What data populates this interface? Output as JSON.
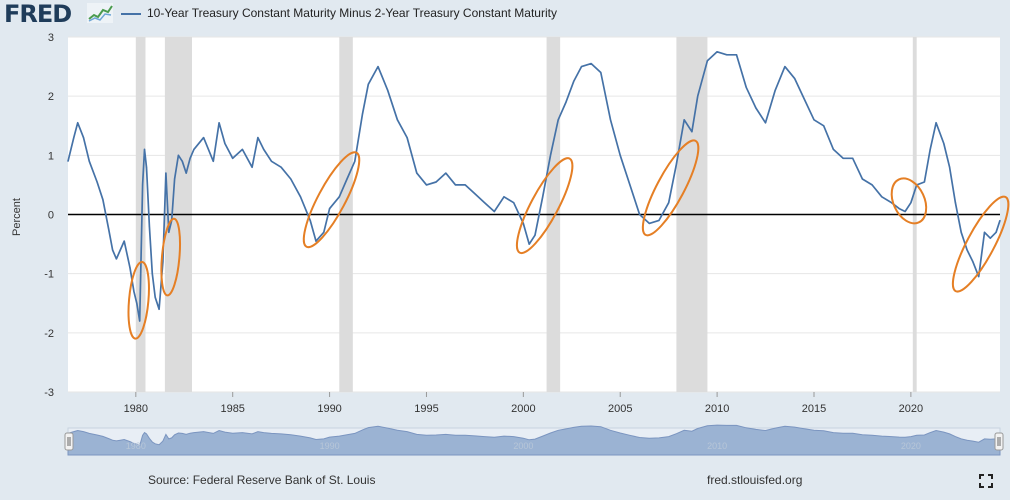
{
  "header": {
    "logo": "FRED",
    "series_title": "10-Year Treasury Constant Maturity Minus 2-Year Treasury Constant Maturity"
  },
  "colors": {
    "series": "#4572a7",
    "recession": "#dcdcdc",
    "annotation": "#e57f25",
    "zero_line": "#000000",
    "background": "#e1e9f0",
    "navigator_fill": "#9bb3d3",
    "navigator_line": "#7b95c0"
  },
  "icons": [
    "fred-logo-icon",
    "fullscreen-icon",
    "navigator-handle-icon"
  ],
  "chart_data": {
    "type": "line",
    "ylabel": "Percent",
    "ylim": [
      -3,
      3
    ],
    "xlim": [
      1976.5,
      2024.6
    ],
    "yticks": [
      3,
      2,
      1,
      0,
      -1,
      -2,
      -3
    ],
    "xticks": [
      1980,
      1985,
      1990,
      1995,
      2000,
      2005,
      2010,
      2015,
      2020
    ],
    "grid": true,
    "legend_position": "top-left",
    "reference_line": 0,
    "recessions": [
      [
        1980.0,
        1980.5
      ],
      [
        1981.5,
        1982.9
      ],
      [
        1990.5,
        1991.2
      ],
      [
        2001.2,
        2001.9
      ],
      [
        2007.9,
        2009.5
      ],
      [
        2020.1,
        2020.3
      ]
    ],
    "series": [
      {
        "name": "10-Year Treasury Constant Maturity Minus 2-Year Treasury Constant Maturity",
        "x": [
          1976.5,
          1976.8,
          1977.0,
          1977.3,
          1977.6,
          1978.0,
          1978.3,
          1978.6,
          1978.8,
          1979.0,
          1979.2,
          1979.4,
          1979.7,
          1979.9,
          1980.05,
          1980.2,
          1980.35,
          1980.45,
          1980.55,
          1980.7,
          1980.85,
          1981.0,
          1981.2,
          1981.4,
          1981.55,
          1981.7,
          1981.85,
          1982.0,
          1982.2,
          1982.4,
          1982.6,
          1982.8,
          1983.0,
          1983.5,
          1984.0,
          1984.3,
          1984.6,
          1985.0,
          1985.5,
          1986.0,
          1986.3,
          1986.6,
          1987.0,
          1987.5,
          1988.0,
          1988.5,
          1989.0,
          1989.3,
          1989.7,
          1990.0,
          1990.5,
          1990.9,
          1991.3,
          1991.7,
          1992.0,
          1992.5,
          1993.0,
          1993.5,
          1994.0,
          1994.5,
          1995.0,
          1995.5,
          1996.0,
          1996.5,
          1997.0,
          1997.5,
          1998.0,
          1998.5,
          1999.0,
          1999.5,
          2000.0,
          2000.3,
          2000.6,
          2001.0,
          2001.4,
          2001.8,
          2002.2,
          2002.6,
          2003.0,
          2003.5,
          2004.0,
          2004.5,
          2005.0,
          2005.5,
          2006.0,
          2006.5,
          2007.0,
          2007.5,
          2007.9,
          2008.3,
          2008.7,
          2009.0,
          2009.5,
          2010.0,
          2010.5,
          2011.0,
          2011.5,
          2012.0,
          2012.5,
          2013.0,
          2013.5,
          2014.0,
          2014.5,
          2015.0,
          2015.5,
          2016.0,
          2016.5,
          2017.0,
          2017.5,
          2018.0,
          2018.5,
          2019.0,
          2019.4,
          2019.7,
          2020.0,
          2020.3,
          2020.7,
          2021.0,
          2021.3,
          2021.7,
          2022.0,
          2022.3,
          2022.6,
          2022.9,
          2023.2,
          2023.5,
          2023.8,
          2024.1,
          2024.4,
          2024.6
        ],
        "values": [
          0.9,
          1.3,
          1.55,
          1.3,
          0.9,
          0.55,
          0.25,
          -0.25,
          -0.6,
          -0.75,
          -0.6,
          -0.45,
          -0.9,
          -1.3,
          -1.5,
          -1.8,
          0.5,
          1.1,
          0.8,
          -0.2,
          -1.0,
          -1.4,
          -1.6,
          -0.8,
          0.7,
          -0.3,
          -0.1,
          0.6,
          1.0,
          0.9,
          0.7,
          0.95,
          1.1,
          1.3,
          0.9,
          1.55,
          1.2,
          0.95,
          1.1,
          0.8,
          1.3,
          1.1,
          0.9,
          0.8,
          0.6,
          0.3,
          -0.1,
          -0.45,
          -0.3,
          0.1,
          0.3,
          0.6,
          0.9,
          1.7,
          2.2,
          2.5,
          2.1,
          1.6,
          1.3,
          0.7,
          0.5,
          0.55,
          0.7,
          0.5,
          0.5,
          0.35,
          0.2,
          0.05,
          0.3,
          0.2,
          -0.15,
          -0.5,
          -0.35,
          0.3,
          1.0,
          1.6,
          1.9,
          2.25,
          2.5,
          2.55,
          2.4,
          1.6,
          1.0,
          0.5,
          0.0,
          -0.15,
          -0.1,
          0.2,
          0.85,
          1.6,
          1.4,
          2.0,
          2.6,
          2.75,
          2.7,
          2.7,
          2.15,
          1.8,
          1.55,
          2.1,
          2.5,
          2.3,
          1.95,
          1.6,
          1.5,
          1.1,
          0.95,
          0.95,
          0.6,
          0.5,
          0.3,
          0.2,
          0.1,
          0.05,
          0.2,
          0.5,
          0.55,
          1.1,
          1.55,
          1.2,
          0.8,
          0.2,
          -0.3,
          -0.6,
          -0.8,
          -1.05,
          -0.3,
          -0.4,
          -0.3,
          -0.1
        ]
      }
    ],
    "annotations": [
      {
        "type": "ellipse",
        "cx": 1980.15,
        "cy": -1.45,
        "rx": 0.5,
        "ry": 0.65,
        "rotation": 5
      },
      {
        "type": "ellipse",
        "cx": 1981.8,
        "cy": -0.72,
        "rx": 0.45,
        "ry": 0.65,
        "rotation": 5
      },
      {
        "type": "ellipse",
        "cx": 1990.1,
        "cy": 0.25,
        "rx": 0.7,
        "ry": 0.9,
        "rotation": 28
      },
      {
        "type": "ellipse",
        "cx": 2001.1,
        "cy": 0.15,
        "rx": 0.7,
        "ry": 0.9,
        "rotation": 28
      },
      {
        "type": "ellipse",
        "cx": 2007.6,
        "cy": 0.45,
        "rx": 0.7,
        "ry": 0.9,
        "rotation": 28
      },
      {
        "type": "ellipse",
        "cx": 2019.9,
        "cy": 0.23,
        "rx": 0.8,
        "ry": 0.4,
        "rotation": -25
      },
      {
        "type": "ellipse",
        "cx": 2023.6,
        "cy": -0.5,
        "rx": 0.7,
        "ry": 0.9,
        "rotation": 28
      }
    ],
    "navigator_labels": [
      "1980",
      "1990",
      "2000",
      "2010",
      "2020"
    ]
  },
  "footer": {
    "source": "Source: Federal Reserve Bank of St. Louis",
    "url": "fred.stlouisfed.org"
  }
}
